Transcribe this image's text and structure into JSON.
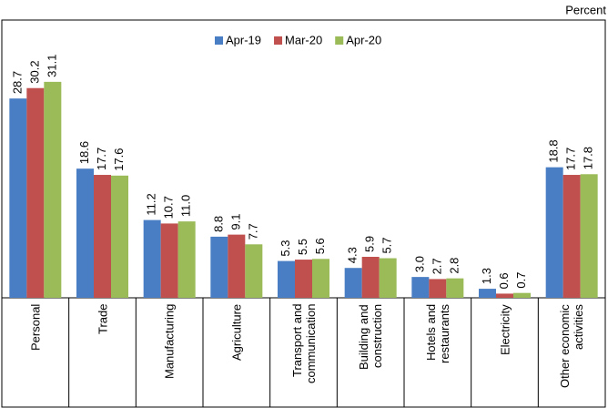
{
  "chart_data": {
    "type": "bar",
    "y_unit": "Percent",
    "categories": [
      "Personal",
      "Trade",
      "Manufacturing",
      "Agriculture",
      "Transport and communication",
      "Building and construction",
      "Hotels and restaurants",
      "Electricity",
      "Other economic activities"
    ],
    "series": [
      {
        "name": "Apr-19",
        "color": "#4a7ec4",
        "values": [
          28.7,
          18.6,
          11.2,
          8.8,
          5.3,
          4.3,
          3.0,
          1.3,
          18.8
        ],
        "value_labels": [
          "28.7",
          "18.6",
          "11.2",
          "8.8",
          "5.3",
          "4.3",
          "3.0",
          "1.3",
          "18.8"
        ]
      },
      {
        "name": "Mar-20",
        "color": "#c0504d",
        "values": [
          30.2,
          17.7,
          10.7,
          9.1,
          5.5,
          5.9,
          2.7,
          0.6,
          17.7
        ],
        "value_labels": [
          "30.2",
          "17.7",
          "10.7",
          "9.1",
          "5.5",
          "5.9",
          "2.7",
          "0.6",
          "17.7"
        ]
      },
      {
        "name": "Apr-20",
        "color": "#9bbb59",
        "values": [
          31.1,
          17.6,
          11.0,
          7.7,
          5.6,
          5.7,
          2.8,
          0.7,
          17.8
        ],
        "value_labels": [
          "31.1",
          "17.6",
          "11.0",
          "7.7",
          "5.6",
          "5.7",
          "2.8",
          "0.7",
          "17.8"
        ]
      }
    ],
    "ylim": [
      0,
      40
    ],
    "legend": "top"
  }
}
